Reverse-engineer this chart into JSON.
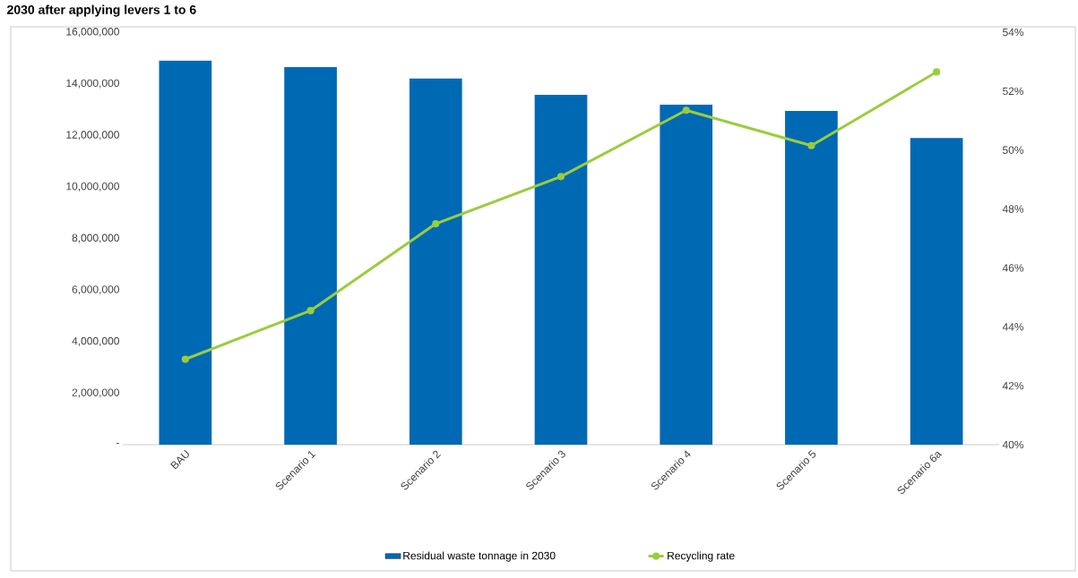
{
  "chart_data": {
    "type": "bar",
    "title": "2030 after applying levers 1 to 6",
    "categories": [
      "BAU",
      "Scenario 1",
      "Scenario 2",
      "Scenario 3",
      "Scenario 4",
      "Scenario 5",
      "Scenario 6a"
    ],
    "series": [
      {
        "name": "Residual waste tonnage in 2030",
        "color": "#0069b4",
        "values": [
          14900000,
          14650000,
          14200000,
          13570000,
          13190000,
          12950000,
          11900000
        ]
      },
      {
        "name": "Recycling rate",
        "type": "line",
        "axis": "y2",
        "color": "#9acd3c",
        "marker": "circle",
        "values": [
          42.9,
          44.55,
          47.5,
          49.1,
          51.35,
          50.15,
          52.65
        ]
      }
    ],
    "ylim": [
      0,
      16000000
    ],
    "yticks": [
      {
        "value": 0,
        "label": "-"
      },
      {
        "value": 2000000,
        "label": "2,000,000"
      },
      {
        "value": 4000000,
        "label": "4,000,000"
      },
      {
        "value": 6000000,
        "label": "6,000,000"
      },
      {
        "value": 8000000,
        "label": "8,000,000"
      },
      {
        "value": 10000000,
        "label": "10,000,000"
      },
      {
        "value": 12000000,
        "label": "12,000,000"
      },
      {
        "value": 14000000,
        "label": "14,000,000"
      },
      {
        "value": 16000000,
        "label": "16,000,000"
      }
    ],
    "y2lim": [
      40,
      54
    ],
    "y2ticks": [
      {
        "value": 40,
        "label": "40%"
      },
      {
        "value": 42,
        "label": "42%"
      },
      {
        "value": 44,
        "label": "44%"
      },
      {
        "value": 46,
        "label": "46%"
      },
      {
        "value": 48,
        "label": "48%"
      },
      {
        "value": 50,
        "label": "50%"
      },
      {
        "value": 52,
        "label": "52%"
      },
      {
        "value": 54,
        "label": "54%"
      }
    ],
    "legend": "bottom"
  }
}
